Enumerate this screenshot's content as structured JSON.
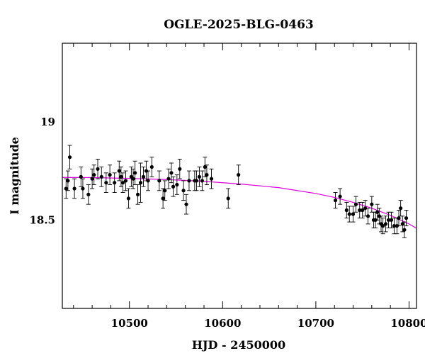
{
  "chart_data": {
    "type": "scatter",
    "title": "OGLE-2025-BLG-0463",
    "xlabel": "HJD - 2450000",
    "ylabel": "I magnitude",
    "xlim": [
      10428,
      10808
    ],
    "ylim": [
      19.4,
      18.05
    ],
    "y_inverted": true,
    "grid": false,
    "x_ticks": [
      10500,
      10600,
      10700,
      10800
    ],
    "y_ticks": [
      18.5,
      19
    ],
    "colors": {
      "points": "#000000",
      "model": "#dd00dd"
    },
    "series": [
      {
        "type": "scatter_errorbar",
        "x": [
          10432,
          10434,
          10436,
          10441,
          10448,
          10450,
          10456,
          10460,
          10462,
          10466,
          10470,
          10475,
          10479,
          10484,
          10489,
          10491,
          10493,
          10496,
          10499,
          10502,
          10504,
          10506,
          10509,
          10512,
          10515,
          10518,
          10520,
          10524,
          10532,
          10536,
          10538,
          10542,
          10545,
          10547,
          10551,
          10554,
          10558,
          10561,
          10564,
          10570,
          10572,
          10575,
          10578,
          10581,
          10583,
          10588,
          10606,
          10617,
          10721,
          10726,
          10733,
          10736,
          10740,
          10743,
          10747,
          10750,
          10753,
          10756,
          10760,
          10762,
          10764,
          10766,
          10768,
          10770,
          10772,
          10775,
          10778,
          10781,
          10784,
          10787,
          10789,
          10791,
          10793,
          10795,
          10797
        ],
        "y": [
          18.66,
          18.7,
          18.82,
          18.66,
          18.72,
          18.66,
          18.63,
          18.71,
          18.73,
          18.76,
          18.72,
          18.69,
          18.73,
          18.69,
          18.75,
          18.72,
          18.69,
          18.7,
          18.61,
          18.72,
          18.71,
          18.74,
          18.63,
          18.69,
          18.72,
          18.75,
          18.7,
          18.77,
          18.7,
          18.61,
          18.65,
          18.71,
          18.74,
          18.67,
          18.68,
          18.76,
          18.65,
          18.58,
          18.7,
          18.7,
          18.7,
          18.72,
          18.7,
          18.77,
          18.73,
          18.71,
          18.61,
          18.73,
          18.6,
          18.62,
          18.55,
          18.53,
          18.53,
          18.58,
          18.55,
          18.55,
          18.56,
          18.52,
          18.58,
          18.5,
          18.5,
          18.54,
          18.52,
          18.48,
          18.47,
          18.48,
          18.5,
          18.5,
          18.47,
          18.47,
          18.51,
          18.56,
          18.48,
          18.45,
          18.51
        ],
        "yerr": [
          0.05,
          0.05,
          0.06,
          0.05,
          0.05,
          0.05,
          0.05,
          0.05,
          0.05,
          0.05,
          0.05,
          0.05,
          0.05,
          0.05,
          0.05,
          0.05,
          0.05,
          0.05,
          0.05,
          0.05,
          0.05,
          0.06,
          0.05,
          0.1,
          0.05,
          0.05,
          0.05,
          0.05,
          0.05,
          0.05,
          0.05,
          0.05,
          0.05,
          0.05,
          0.05,
          0.05,
          0.05,
          0.05,
          0.05,
          0.05,
          0.05,
          0.05,
          0.05,
          0.05,
          0.05,
          0.05,
          0.05,
          0.05,
          0.04,
          0.04,
          0.04,
          0.04,
          0.04,
          0.04,
          0.04,
          0.04,
          0.04,
          0.04,
          0.04,
          0.04,
          0.04,
          0.04,
          0.04,
          0.04,
          0.04,
          0.04,
          0.04,
          0.04,
          0.04,
          0.04,
          0.04,
          0.04,
          0.04,
          0.04,
          0.04
        ]
      },
      {
        "type": "line",
        "x": [
          10428,
          10460,
          10500,
          10540,
          10580,
          10620,
          10660,
          10700,
          10720,
          10740,
          10760,
          10780,
          10800,
          10808
        ],
        "y": [
          18.717,
          18.716,
          18.712,
          18.706,
          18.697,
          18.683,
          18.665,
          18.635,
          18.615,
          18.59,
          18.56,
          18.524,
          18.48,
          18.458
        ]
      }
    ]
  }
}
